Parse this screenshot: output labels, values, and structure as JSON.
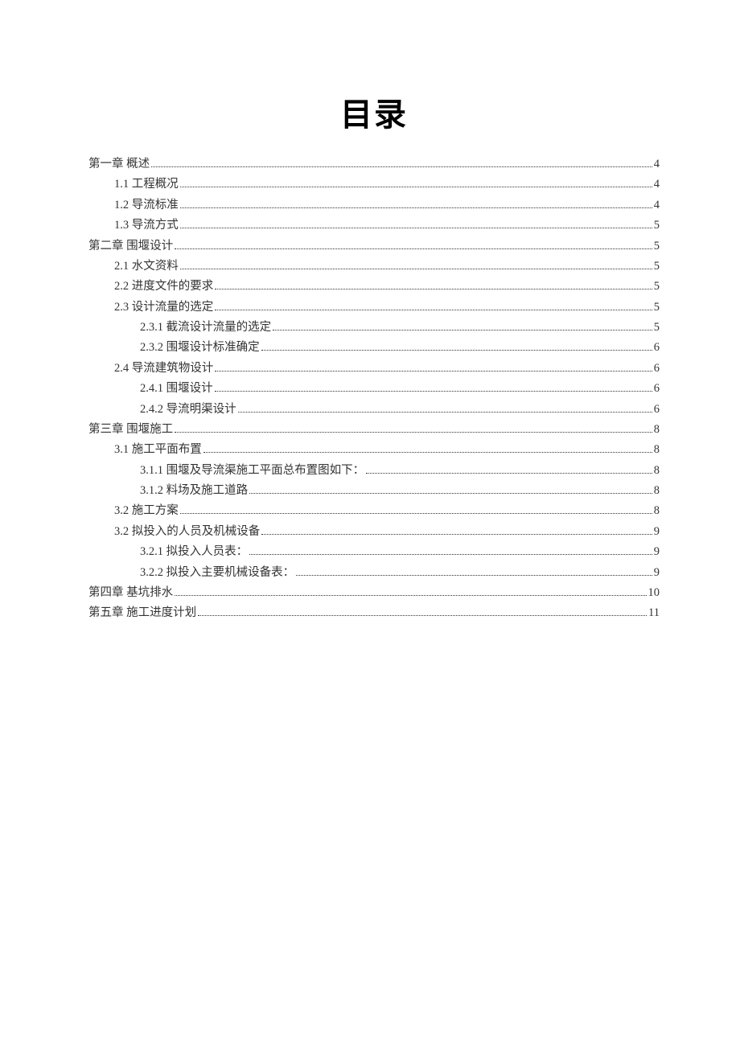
{
  "title": "目录",
  "entries": [
    {
      "level": 0,
      "label": "第一章 概述",
      "page": "4"
    },
    {
      "level": 1,
      "label": "1.1 工程概况",
      "page": "4"
    },
    {
      "level": 1,
      "label": "1.2 导流标准",
      "page": "4"
    },
    {
      "level": 1,
      "label": "1.3 导流方式",
      "page": "5"
    },
    {
      "level": 0,
      "label": "第二章 围堰设计",
      "page": "5"
    },
    {
      "level": 1,
      "label": "2.1 水文资料",
      "page": "5"
    },
    {
      "level": 1,
      "label": "2.2 进度文件的要求",
      "page": "5"
    },
    {
      "level": 1,
      "label": "2.3 设计流量的选定",
      "page": "5"
    },
    {
      "level": 2,
      "label": "2.3.1 截流设计流量的选定",
      "page": "5"
    },
    {
      "level": 2,
      "label": "2.3.2 围堰设计标准确定",
      "page": "6"
    },
    {
      "level": 1,
      "label": "2.4 导流建筑物设计",
      "page": "6"
    },
    {
      "level": 2,
      "label": "2.4.1 围堰设计",
      "page": "6"
    },
    {
      "level": 2,
      "label": "2.4.2 导流明渠设计",
      "page": "6"
    },
    {
      "level": 0,
      "label": "第三章 围堰施工",
      "page": "8"
    },
    {
      "level": 1,
      "label": "3.1 施工平面布置",
      "page": "8"
    },
    {
      "level": 2,
      "label": "3.1.1 围堰及导流渠施工平面总布置图如下：",
      "page": "8"
    },
    {
      "level": 2,
      "label": "3.1.2 料场及施工道路",
      "page": "8"
    },
    {
      "level": 1,
      "label": "3.2 施工方案",
      "page": "8"
    },
    {
      "level": 1,
      "label": "3.2 拟投入的人员及机械设备",
      "page": "9"
    },
    {
      "level": 2,
      "label": "3.2.1 拟投入人员表：",
      "page": "9"
    },
    {
      "level": 2,
      "label": "3.2.2 拟投入主要机械设备表：",
      "page": "9"
    },
    {
      "level": 0,
      "label": "第四章 基坑排水",
      "page": "10"
    },
    {
      "level": 0,
      "label": "第五章 施工进度计划",
      "page": "11"
    }
  ]
}
